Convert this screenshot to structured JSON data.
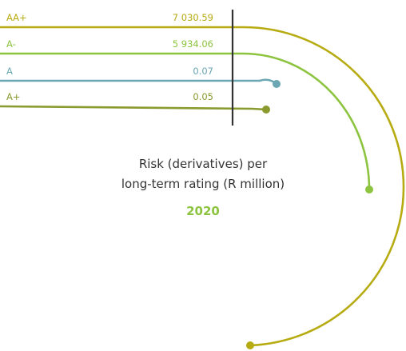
{
  "chart_data": {
    "type": "bar",
    "title_lines": [
      "Risk (derivatives) per",
      "long-term rating (R million)"
    ],
    "year": "2020",
    "series": [
      {
        "category": "AA+",
        "value": 7030.59,
        "value_label": "7 030.59",
        "color": "#b7ab12"
      },
      {
        "category": "A-",
        "value": 5934.06,
        "value_label": "5 934.06",
        "color": "#8cc43f"
      },
      {
        "category": "A",
        "value": 0.07,
        "value_label": "0.07",
        "color": "#6aa7b2"
      },
      {
        "category": "A+",
        "value": 0.05,
        "value_label": "0.05",
        "color": "#8a9a2e"
      }
    ],
    "colors": {
      "divider": "#333333",
      "title": "#333333",
      "year": "#8cc43f"
    }
  }
}
